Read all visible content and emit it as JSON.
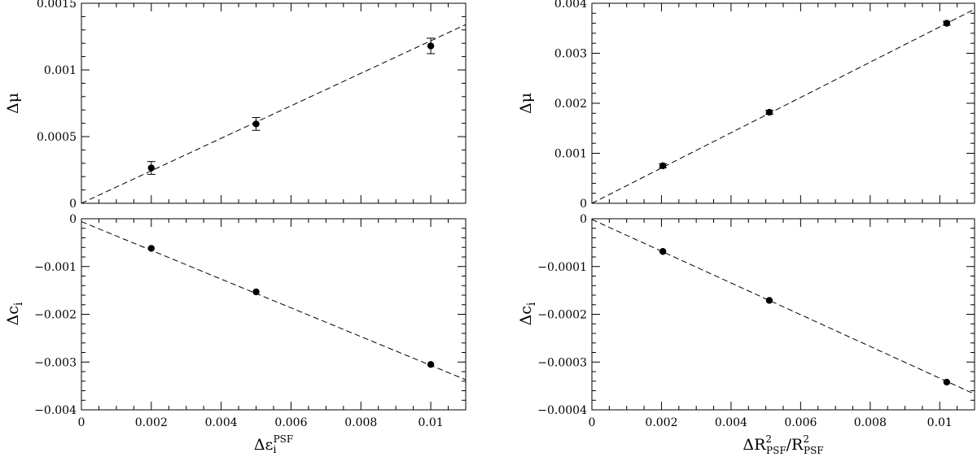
{
  "chart_data": [
    {
      "type": "scatter",
      "panel": "top-left",
      "xlabel": "",
      "ylabel": "Δμ",
      "xlim": [
        0,
        0.011
      ],
      "ylim": [
        0,
        0.0015
      ],
      "xticks": [
        0,
        0.002,
        0.004,
        0.006,
        0.008,
        0.01
      ],
      "xticklabels": [],
      "yticks": [
        0,
        0.0005,
        0.001,
        0.0015
      ],
      "yticklabels": [
        "0",
        "0.0005",
        "0.001",
        "0.0015"
      ],
      "points": {
        "x": [
          0.002,
          0.005,
          0.01
        ],
        "y": [
          0.000265,
          0.000595,
          0.00118
        ],
        "yerr": [
          4.8e-05,
          4.8e-05,
          5.8e-05
        ]
      },
      "fit_line": {
        "x": [
          0,
          0.011
        ],
        "y": [
          0.0,
          0.00134
        ]
      }
    },
    {
      "type": "scatter",
      "panel": "bottom-left",
      "xlabel": "Δε",
      "xlabel_sub": "i",
      "xlabel_sup": "PSF",
      "ylabel": "Δc",
      "ylabel_sub": "i",
      "xlim": [
        0,
        0.011
      ],
      "ylim": [
        -0.004,
        0
      ],
      "xticks": [
        0,
        0.002,
        0.004,
        0.006,
        0.008,
        0.01
      ],
      "xticklabels": [
        "0",
        "0.002",
        "0.004",
        "0.006",
        "0.008",
        "0.01"
      ],
      "yticks": [
        -0.004,
        -0.003,
        -0.002,
        -0.001,
        0
      ],
      "yticklabels": [
        "−0.004",
        "−0.003",
        "−0.002",
        "−0.001",
        "0"
      ],
      "points": {
        "x": [
          0.002,
          0.005,
          0.01
        ],
        "y": [
          -0.00062,
          -0.00153,
          -0.00305
        ],
        "yerr": [
          2e-05,
          2e-05,
          2e-05
        ]
      },
      "fit_line": {
        "x": [
          0,
          0.011
        ],
        "y": [
          -6e-05,
          -0.00337
        ]
      }
    },
    {
      "type": "scatter",
      "panel": "top-right",
      "xlabel": "",
      "ylabel": "Δμ",
      "xlim": [
        0,
        0.011
      ],
      "ylim": [
        0,
        0.004
      ],
      "xticks": [
        0,
        0.002,
        0.004,
        0.006,
        0.008,
        0.01
      ],
      "xticklabels": [],
      "yticks": [
        0,
        0.001,
        0.002,
        0.003,
        0.004
      ],
      "yticklabels": [
        "0",
        "0.001",
        "0.002",
        "0.003",
        "0.004"
      ],
      "points": {
        "x": [
          0.00204,
          0.0051,
          0.0102
        ],
        "y": [
          0.00075,
          0.00182,
          0.0036
        ],
        "yerr": [
          4e-05,
          4e-05,
          4e-05
        ]
      },
      "fit_line": {
        "x": [
          0,
          0.011
        ],
        "y": [
          0.0,
          0.00388
        ]
      }
    },
    {
      "type": "scatter",
      "panel": "bottom-right",
      "xlabel": "ΔR / R",
      "ylabel": "Δc",
      "ylabel_sub": "i",
      "xlim": [
        0,
        0.011
      ],
      "ylim": [
        -0.0004,
        0
      ],
      "xticks": [
        0,
        0.002,
        0.004,
        0.006,
        0.008,
        0.01
      ],
      "xticklabels": [
        "0",
        "0.002",
        "0.004",
        "0.006",
        "0.008",
        "0.01"
      ],
      "yticks": [
        -0.0004,
        -0.0003,
        -0.0002,
        -0.0001,
        0
      ],
      "yticklabels": [
        "−0.0004",
        "−0.0003",
        "−0.0002",
        "−0.0001",
        "0"
      ],
      "points": {
        "x": [
          0.00204,
          0.0051,
          0.0102
        ],
        "y": [
          -6.85e-05,
          -0.000171,
          -0.000342
        ],
        "yerr": [
          2e-06,
          2e-06,
          2e-06
        ]
      },
      "fit_line": {
        "x": [
          0,
          0.011
        ],
        "y": [
          -1.5e-06,
          -0.000367
        ]
      }
    }
  ],
  "labels": {
    "right_xlabel": {
      "d": "ΔR",
      "sup1": "2",
      "sub1": "PSF",
      "slash": "/R",
      "sup2": "2",
      "sub2": "PSF"
    }
  }
}
